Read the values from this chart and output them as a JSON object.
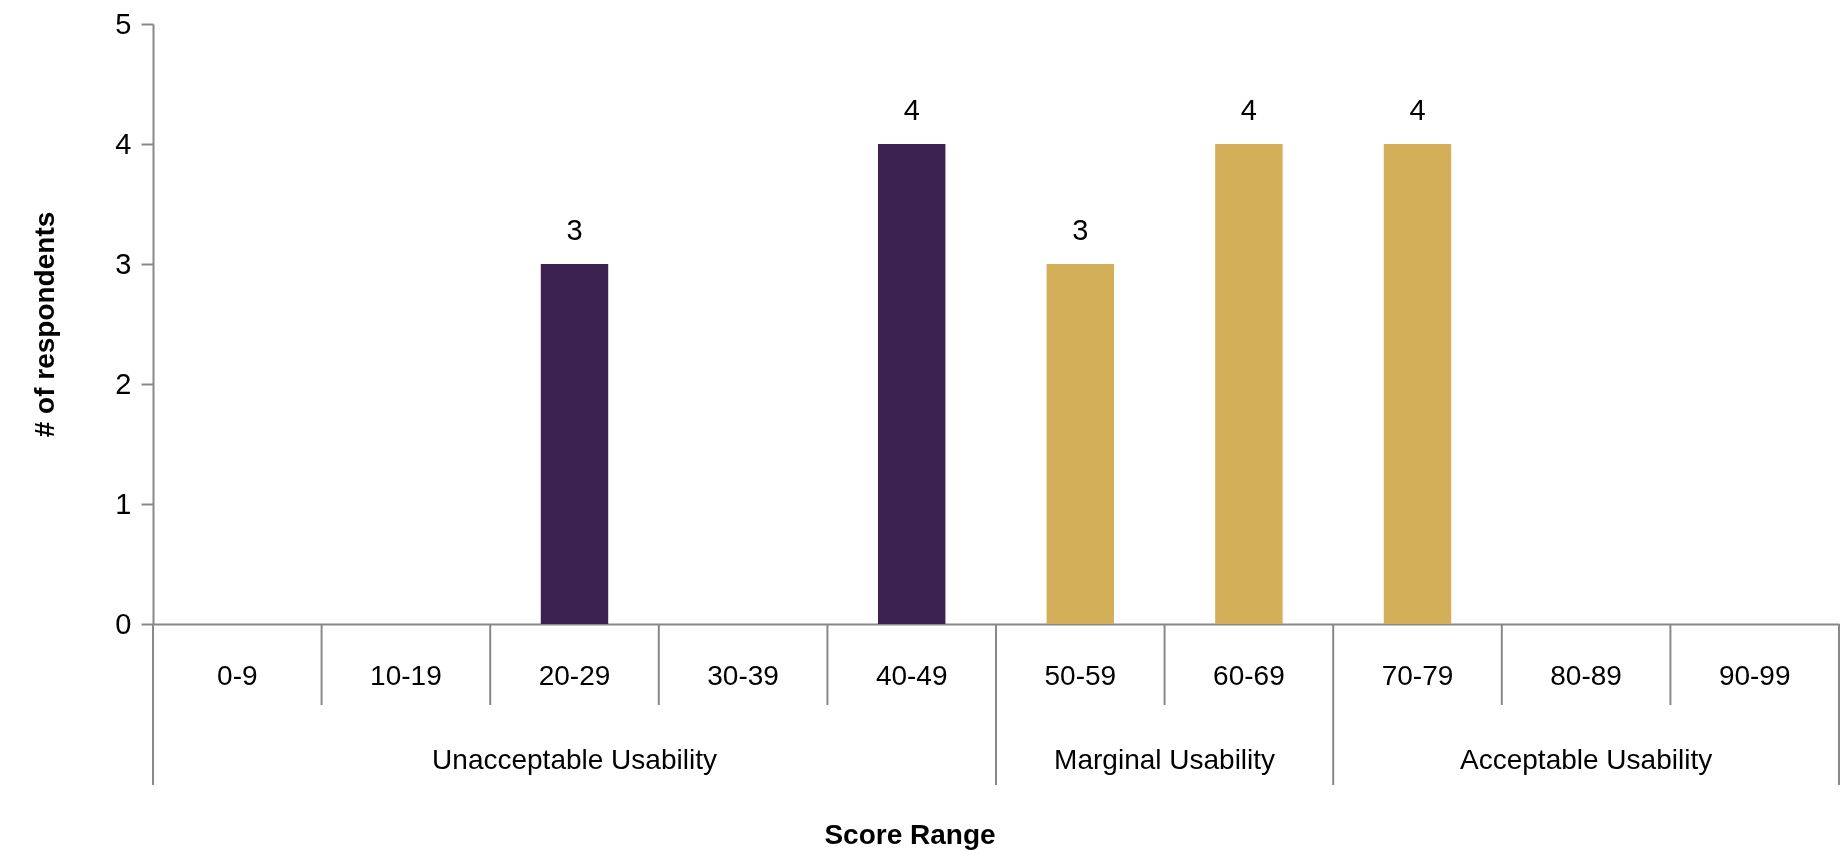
{
  "chart_data": {
    "type": "bar",
    "xlabel": "Score Range",
    "ylabel": "# of respondents",
    "categories": [
      "0-9",
      "10-19",
      "20-29",
      "30-39",
      "40-49",
      "50-59",
      "60-69",
      "70-79",
      "80-89",
      "90-99"
    ],
    "values": [
      0,
      0,
      3,
      0,
      4,
      3,
      4,
      4,
      0,
      0
    ],
    "colors": [
      "#3b2250",
      "#3b2250",
      "#3b2250",
      "#3b2250",
      "#3b2250",
      "#d4af59",
      "#d4af59",
      "#d4af59",
      "#d4af59",
      "#d4af59"
    ],
    "value_labels": [
      null,
      null,
      "3",
      null,
      "4",
      "3",
      "4",
      "4",
      null,
      null
    ],
    "ylim": [
      0,
      5
    ],
    "yticks": [
      0,
      1,
      2,
      3,
      4,
      5
    ],
    "grid": false,
    "legend": false,
    "annotations": [
      "Unacceptable Usability",
      "Marginal Usability",
      "Acceptable Usability"
    ]
  }
}
